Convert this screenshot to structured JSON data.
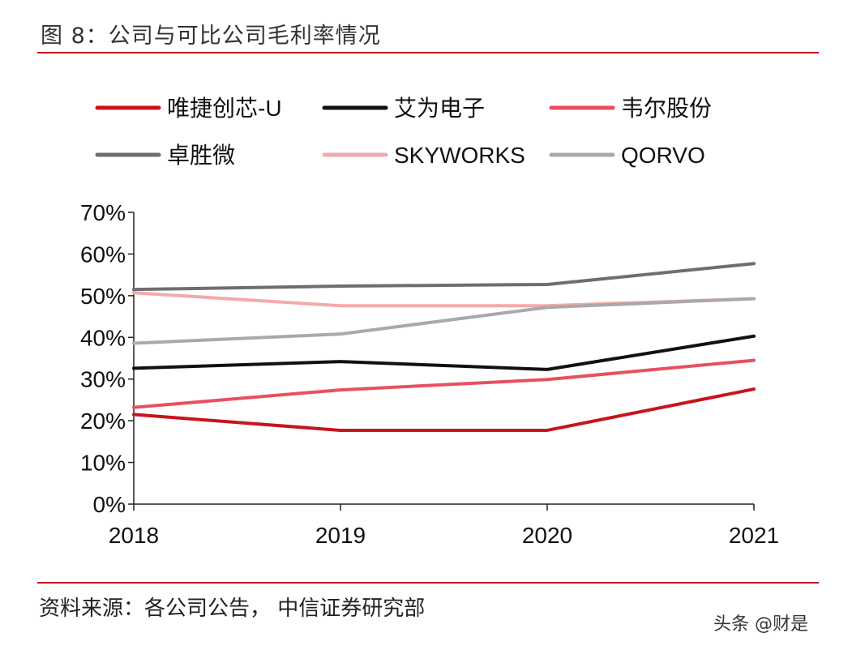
{
  "title": "图 8：公司与可比公司毛利率情况",
  "source": "资料来源：各公司公告， 中信证券研究部",
  "watermark": "头条 @财是",
  "chart_data": {
    "type": "line",
    "x": [
      "2018",
      "2019",
      "2020",
      "2021"
    ],
    "y_ticks": [
      "0%",
      "10%",
      "20%",
      "30%",
      "40%",
      "50%",
      "60%",
      "70%"
    ],
    "ylim": [
      0,
      70
    ],
    "legend_position": "top",
    "series": [
      {
        "name": "唯捷创芯-U",
        "color": "#c8141d",
        "values": [
          21.5,
          17.7,
          17.7,
          27.6
        ]
      },
      {
        "name": "艾为电子",
        "color": "#111111",
        "values": [
          32.6,
          34.2,
          32.3,
          40.3
        ]
      },
      {
        "name": "韦尔股份",
        "color": "#e8505e",
        "values": [
          23.2,
          27.4,
          29.9,
          34.5
        ]
      },
      {
        "name": "卓胜微",
        "color": "#6e6e6e",
        "values": [
          51.5,
          52.3,
          52.7,
          57.7
        ]
      },
      {
        "name": "SKYWORKS",
        "color": "#f3aaaa",
        "values": [
          50.7,
          47.6,
          47.6,
          49.3
        ]
      },
      {
        "name": "QORVO",
        "color": "#a9a9a9",
        "values": [
          38.6,
          40.8,
          47.2,
          49.3
        ]
      }
    ]
  }
}
